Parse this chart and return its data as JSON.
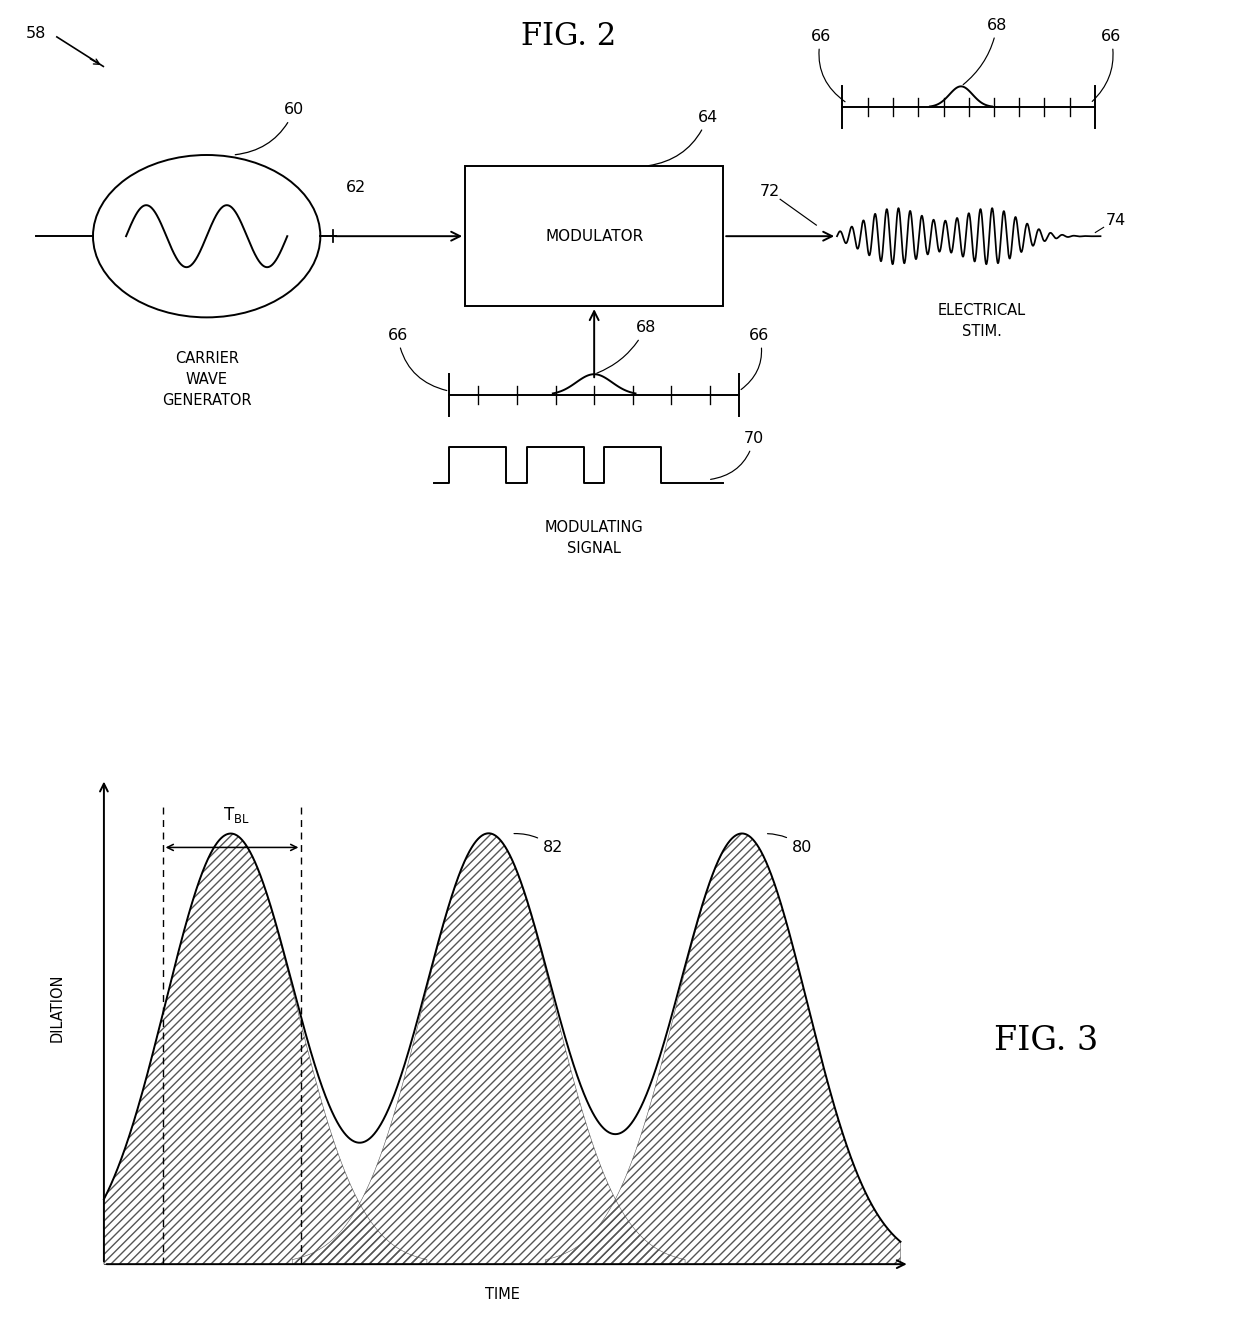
{
  "fig_width": 12.4,
  "fig_height": 13.18,
  "bg_color": "#ffffff",
  "line_color": "#000000",
  "fig2_title": "FIG. 2",
  "fig3_title": "FIG. 3",
  "label_58": "58",
  "label_60": "60",
  "label_62": "62",
  "label_64": "64",
  "label_66": "66",
  "label_68": "68",
  "label_70": "70",
  "label_72": "72",
  "label_74": "74",
  "label_80": "80",
  "label_82": "82",
  "carrier_wave_text": "CARRIER\nWAVE\nGENERATOR",
  "modulator_text": "MODULATOR",
  "electrical_stim_text": "ELECTRICAL\nSTIM.",
  "modulating_signal_text": "MODULATING\nSIGNAL",
  "dilation_label": "DILATION",
  "time_label": "TIME"
}
